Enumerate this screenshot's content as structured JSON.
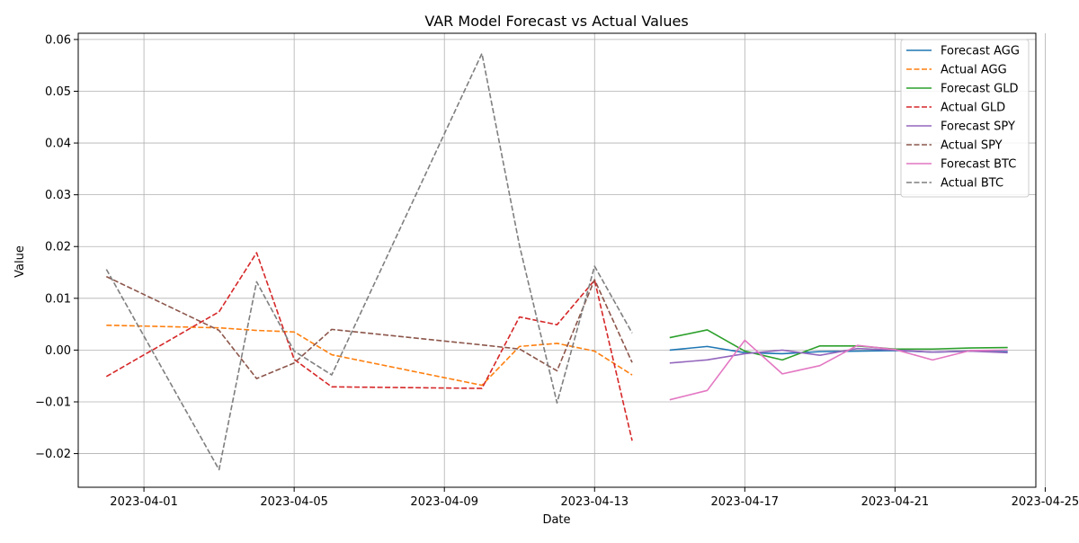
{
  "chart_data": {
    "type": "line",
    "title": "VAR Model Forecast vs Actual Values",
    "xlabel": "Date",
    "ylabel": "Value",
    "x_axis_type": "date",
    "xlim": [
      "2023-03-30T06:00",
      "2023-04-24T18:00"
    ],
    "ylim": [
      -0.0265,
      0.0612
    ],
    "x_ticks": [
      "2023-04-01",
      "2023-04-05",
      "2023-04-09",
      "2023-04-13",
      "2023-04-17",
      "2023-04-21",
      "2023-04-25"
    ],
    "y_ticks": [
      -0.02,
      -0.01,
      0.0,
      0.01,
      0.02,
      0.03,
      0.04,
      0.05,
      0.06
    ],
    "y_tick_labels": [
      "−0.02",
      "−0.01",
      "0.00",
      "0.01",
      "0.02",
      "0.03",
      "0.04",
      "0.05",
      "0.06"
    ],
    "grid": true,
    "legend_position": "top-right",
    "actual_dates": [
      "2023-03-31",
      "2023-04-03",
      "2023-04-04",
      "2023-04-05",
      "2023-04-06",
      "2023-04-10",
      "2023-04-11",
      "2023-04-12",
      "2023-04-13",
      "2023-04-14"
    ],
    "forecast_dates": [
      "2023-04-15",
      "2023-04-16",
      "2023-04-17",
      "2023-04-18",
      "2023-04-19",
      "2023-04-20",
      "2023-04-21",
      "2023-04-22",
      "2023-04-23",
      "2023-04-24"
    ],
    "series": [
      {
        "name": "Forecast AGG",
        "kind": "forecast",
        "color": "#1f77b4",
        "dashed": false,
        "values": [
          0.0,
          0.0007,
          -0.0005,
          -0.0007,
          -0.0003,
          -0.0002,
          -0.0001,
          -0.0004,
          -0.0002,
          -0.0003
        ]
      },
      {
        "name": "Actual AGG",
        "kind": "actual",
        "color": "#ff7f0e",
        "dashed": true,
        "values": [
          0.0048,
          0.0043,
          0.0038,
          0.0035,
          -0.0009,
          -0.0068,
          0.0007,
          0.0013,
          -0.0002,
          -0.0048
        ]
      },
      {
        "name": "Forecast GLD",
        "kind": "forecast",
        "color": "#2ca02c",
        "dashed": false,
        "values": [
          0.0024,
          0.0039,
          -0.0002,
          -0.0019,
          0.0008,
          0.0008,
          0.0002,
          0.0002,
          0.0004,
          0.0005
        ]
      },
      {
        "name": "Actual GLD",
        "kind": "actual",
        "color": "#d62728",
        "dashed": true,
        "values": [
          -0.0051,
          0.0074,
          0.0188,
          -0.0018,
          -0.0071,
          -0.0074,
          0.0064,
          0.0049,
          0.0135,
          -0.0175
        ]
      },
      {
        "name": "Forecast SPY",
        "kind": "forecast",
        "color": "#9467bd",
        "dashed": false,
        "values": [
          -0.0025,
          -0.0019,
          -0.0007,
          0.0,
          -0.001,
          0.0003,
          0.0,
          -0.0004,
          -0.0002,
          -0.0005
        ]
      },
      {
        "name": "Actual SPY",
        "kind": "actual",
        "color": "#8c564b",
        "dashed": true,
        "values": [
          0.0142,
          0.0038,
          -0.0055,
          -0.0025,
          0.004,
          0.001,
          0.0002,
          -0.004,
          0.0136,
          -0.0024
        ]
      },
      {
        "name": "Forecast BTC",
        "kind": "forecast",
        "color": "#e377c2",
        "dashed": false,
        "values": [
          -0.0096,
          -0.0078,
          0.0019,
          -0.0046,
          -0.003,
          0.0009,
          0.0001,
          -0.0019,
          -0.0001,
          0.0
        ]
      },
      {
        "name": "Actual BTC",
        "kind": "actual",
        "color": "#7f7f7f",
        "dashed": true,
        "values": [
          0.0156,
          -0.0231,
          0.0132,
          -0.0002,
          -0.0048,
          0.0573,
          0.0202,
          -0.0102,
          0.0162,
          0.0033
        ]
      }
    ]
  }
}
